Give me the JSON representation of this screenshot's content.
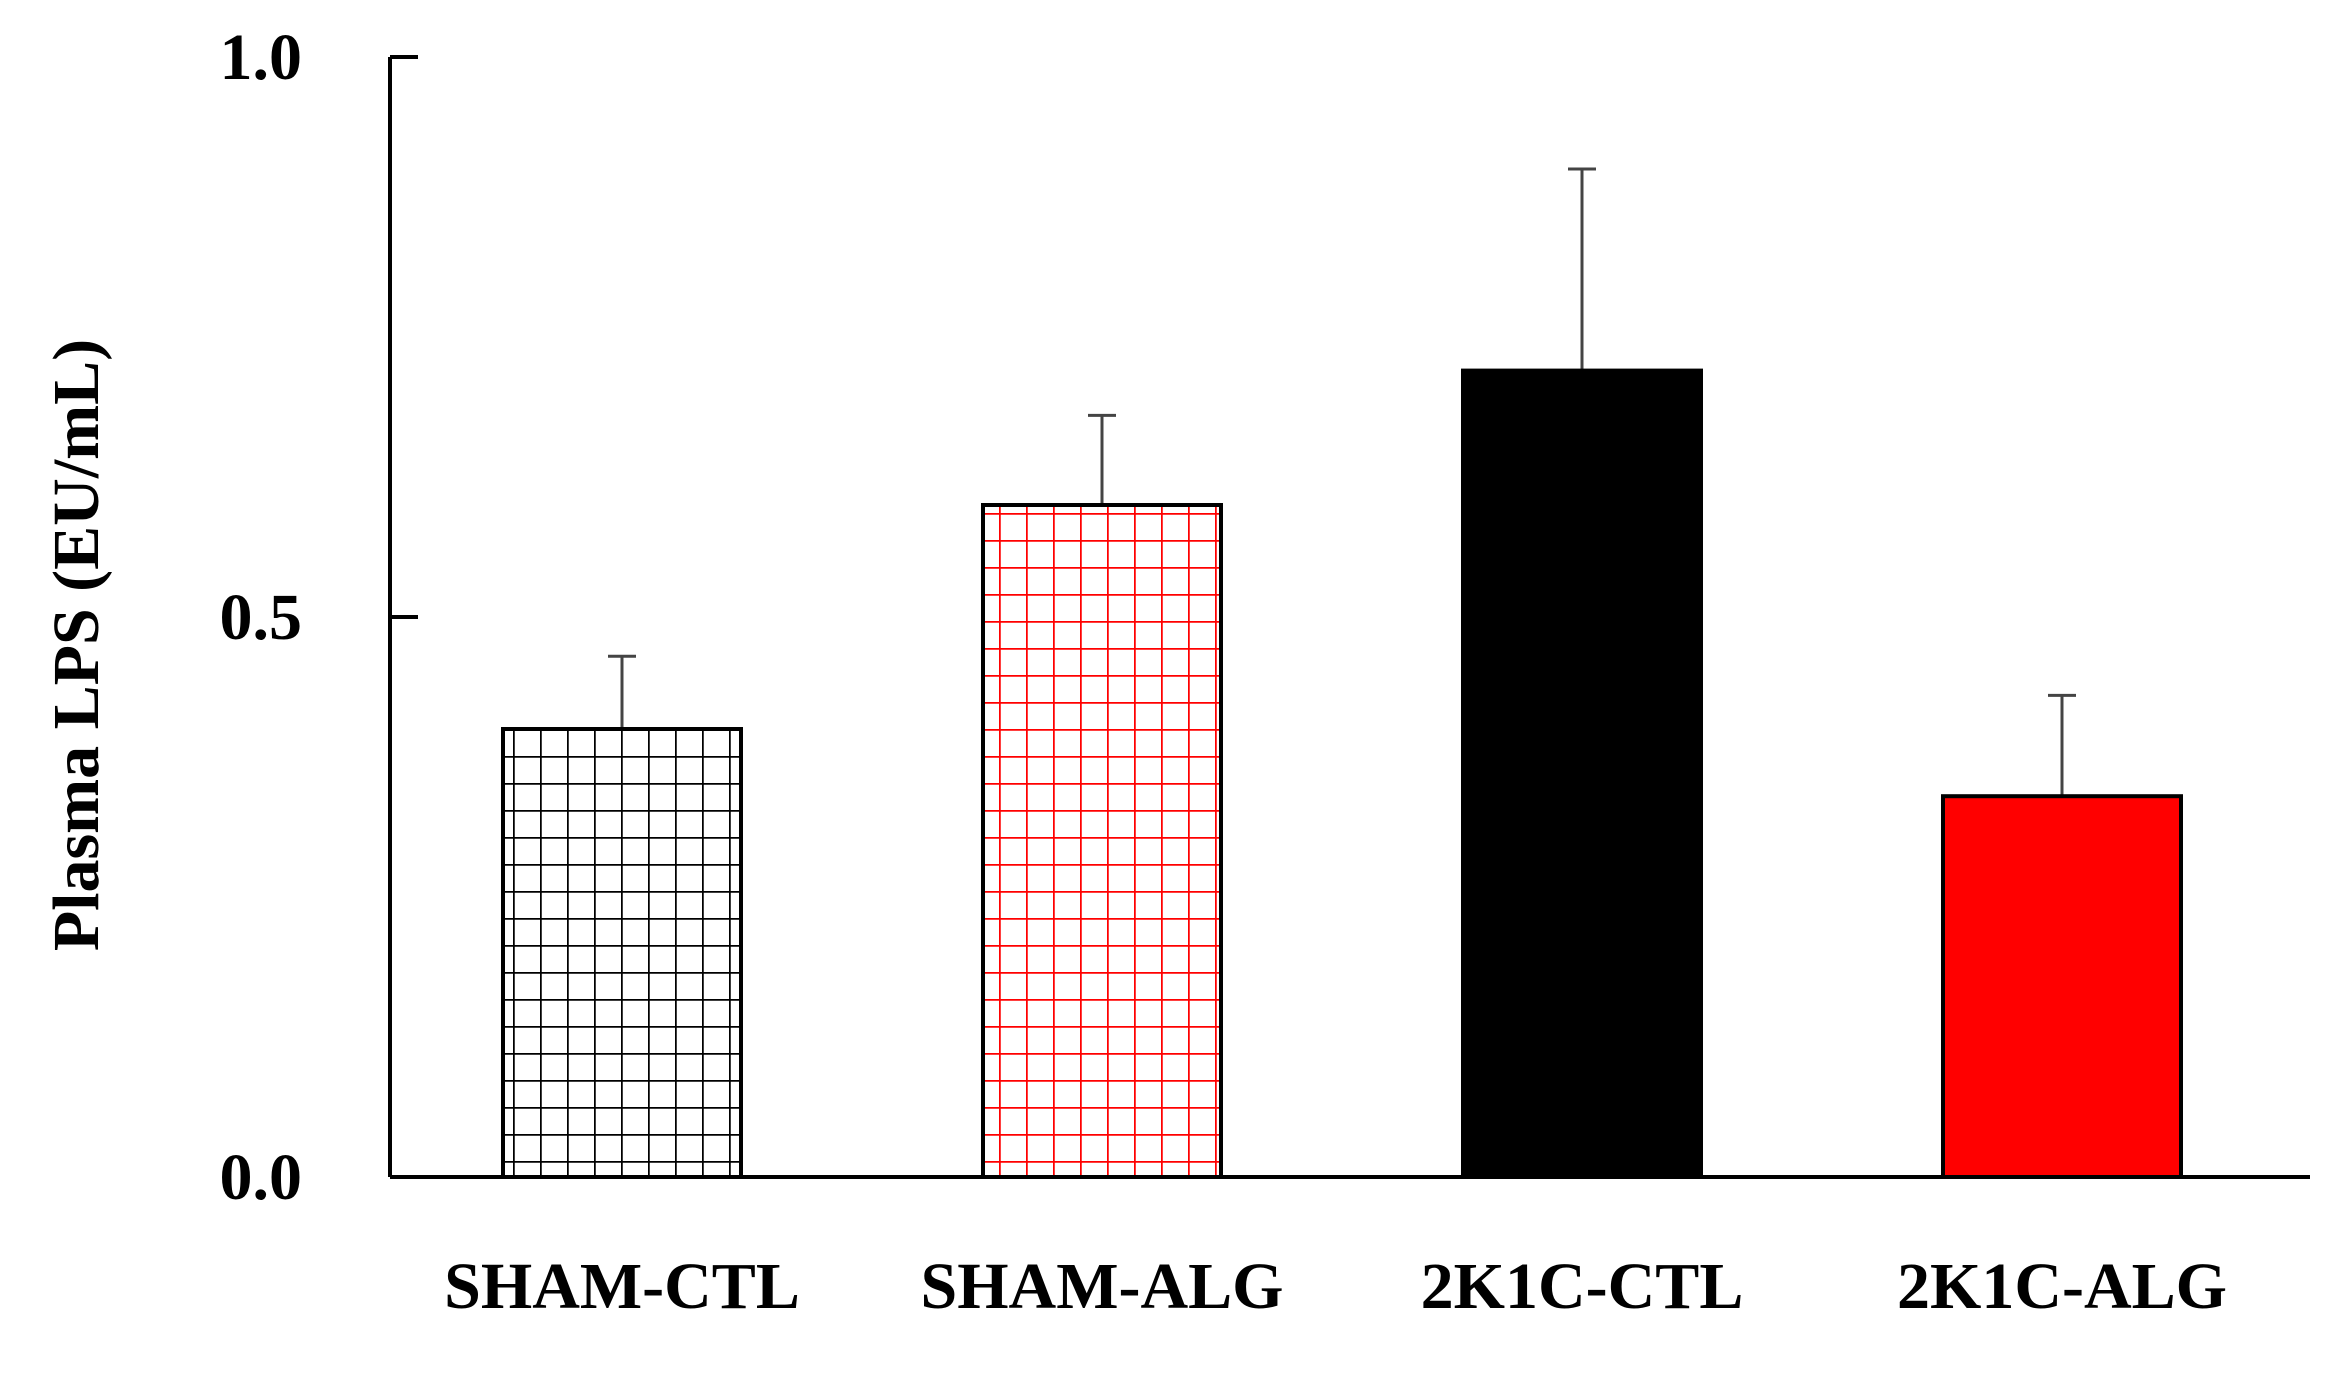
{
  "chart_data": {
    "type": "bar",
    "title": "",
    "xlabel": "",
    "ylabel": "Plasma LPS (EU/mL)",
    "ylim": [
      0,
      1.0
    ],
    "yticks": [
      0.0,
      0.5,
      1.0
    ],
    "ytick_labels": [
      "0.0",
      "0.5",
      "1.0"
    ],
    "categories": [
      "SHAM-CTL",
      "SHAM-ALG",
      "2K1C-CTL",
      "2K1C-ALG"
    ],
    "values": [
      0.4,
      0.6,
      0.72,
      0.34
    ],
    "errors": [
      0.065,
      0.08,
      0.18,
      0.09
    ],
    "bar_styles": [
      {
        "fill": "grid",
        "color": "#000000"
      },
      {
        "fill": "grid",
        "color": "#ff0000"
      },
      {
        "fill": "solid",
        "color": "#000000"
      },
      {
        "fill": "solid",
        "color": "#ff0000"
      }
    ],
    "grid": false,
    "legend": "none"
  }
}
